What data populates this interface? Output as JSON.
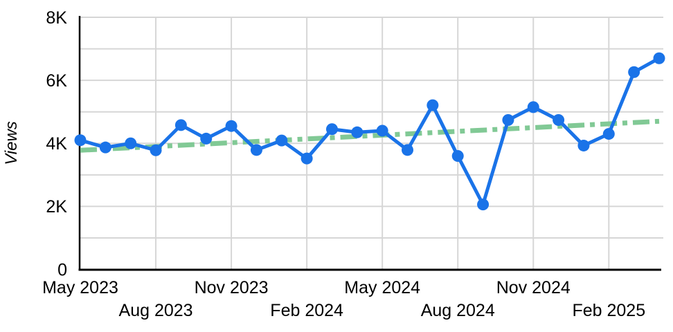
{
  "chart_data": {
    "type": "line",
    "title": "",
    "xlabel": "",
    "ylabel": "Views",
    "x": [
      "May 2023",
      "Jun 2023",
      "Jul 2023",
      "Aug 2023",
      "Sep 2023",
      "Oct 2023",
      "Nov 2023",
      "Dec 2023",
      "Jan 2024",
      "Feb 2024",
      "Mar 2024",
      "Apr 2024",
      "May 2024",
      "Jun 2024",
      "Jul 2024",
      "Aug 2024",
      "Sep 2024",
      "Oct 2024",
      "Nov 2024",
      "Dec 2024",
      "Jan 2025",
      "Feb 2025",
      "Mar 2025",
      "Apr 2025"
    ],
    "series": [
      {
        "name": "Views",
        "color": "#1a73e8",
        "values": [
          4100,
          3870,
          4000,
          3780,
          4580,
          4150,
          4550,
          3790,
          4090,
          3520,
          4450,
          4350,
          4400,
          3790,
          5210,
          3600,
          2060,
          4740,
          5150,
          4740,
          3930,
          4300,
          6260,
          6700
        ]
      }
    ],
    "trendline": {
      "color": "#81c995",
      "style": "dash-dot",
      "start_value": 3780,
      "end_value": 4700
    },
    "ylim": [
      0,
      8000
    ],
    "ytick_values": [
      0,
      2000,
      4000,
      6000,
      8000
    ],
    "ytick_labels": [
      "0",
      "2K",
      "4K",
      "6K",
      "8K"
    ],
    "minor_grid_step": 1000,
    "xtick_indices": [
      0,
      3,
      6,
      9,
      12,
      15,
      18,
      21
    ],
    "xtick_labels": [
      "May 2023",
      "Aug 2023",
      "Nov 2023",
      "Feb 2024",
      "May 2024",
      "Aug 2024",
      "Nov 2024",
      "Feb 2025"
    ],
    "grid": true,
    "legend_position": "none",
    "colors": {
      "series": "#1a73e8",
      "trendline": "#81c995",
      "gridline": "#d6d6d6",
      "axis": "#000000",
      "text": "#000000",
      "background": "#ffffff"
    }
  }
}
